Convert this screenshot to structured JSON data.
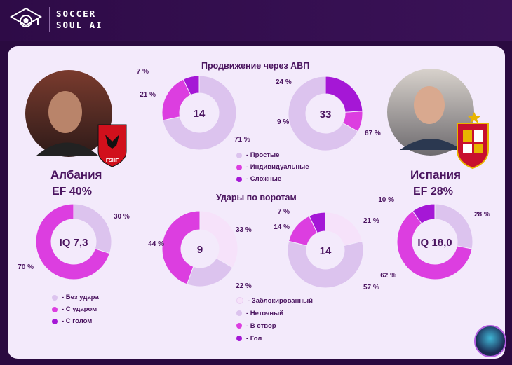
{
  "brand": {
    "line1": "SOCCER",
    "line2": "SOUL AI"
  },
  "teams": {
    "left": {
      "name": "Албания",
      "ef": "EF  40%",
      "badge": "FSHF"
    },
    "right": {
      "name": "Испания",
      "ef": "EF  28%"
    }
  },
  "colors": {
    "light": "#dcc3ee",
    "pale": "#f6e2fa",
    "magenta": "#dc3ee0",
    "violet": "#a517d6",
    "text": "#4b1560"
  },
  "legends": {
    "progress": [
      "- Простые",
      "- Индивидуальные",
      "- Сложные"
    ],
    "iq": [
      "- Без удара",
      "- С ударом",
      "- С голом"
    ],
    "shots": [
      "- Заблокированный",
      "- Неточный",
      "- В створ",
      "- Гол"
    ]
  },
  "chart_data": [
    {
      "type": "pie",
      "title": "Продвижение через АВП",
      "team": "Албания",
      "center": "14",
      "categories": [
        "Простые",
        "Индивидуальные",
        "Сложные"
      ],
      "values": [
        71,
        21,
        7
      ],
      "labels": [
        "71 %",
        "21 %",
        "7 %"
      ]
    },
    {
      "type": "pie",
      "title": "Продвижение через АВП",
      "team": "Испания",
      "center": "33",
      "categories": [
        "Простые",
        "Индивидуальные",
        "Сложные"
      ],
      "values": [
        67,
        9,
        24
      ],
      "labels": [
        "67 %",
        "9 %",
        "24 %"
      ]
    },
    {
      "type": "pie",
      "team": "Албания",
      "center": "IQ 7,3",
      "categories": [
        "Без удара",
        "С ударом",
        "С голом"
      ],
      "values": [
        30,
        70,
        0
      ],
      "labels": [
        "30 %",
        "70 %",
        ""
      ]
    },
    {
      "type": "pie",
      "team": "Испания",
      "center": "IQ 18,0",
      "categories": [
        "Без удара",
        "С ударом",
        "С голом"
      ],
      "values": [
        28,
        62,
        10
      ],
      "labels": [
        "28 %",
        "62 %",
        "10 %"
      ]
    },
    {
      "type": "pie",
      "title": "Удары по воротам",
      "team": "Албания",
      "center": "9",
      "categories": [
        "Заблокированный",
        "Неточный",
        "В створ",
        "Гол"
      ],
      "values": [
        33,
        22,
        44,
        0
      ],
      "labels": [
        "33 %",
        "22 %",
        "44 %",
        ""
      ]
    },
    {
      "type": "pie",
      "title": "Удары по воротам",
      "team": "Испания",
      "center": "14",
      "categories": [
        "Заблокированный",
        "Неточный",
        "В створ",
        "Гол"
      ],
      "values": [
        21,
        57,
        14,
        7
      ],
      "labels": [
        "21 %",
        "57 %",
        "14 %",
        "7 %"
      ]
    }
  ]
}
